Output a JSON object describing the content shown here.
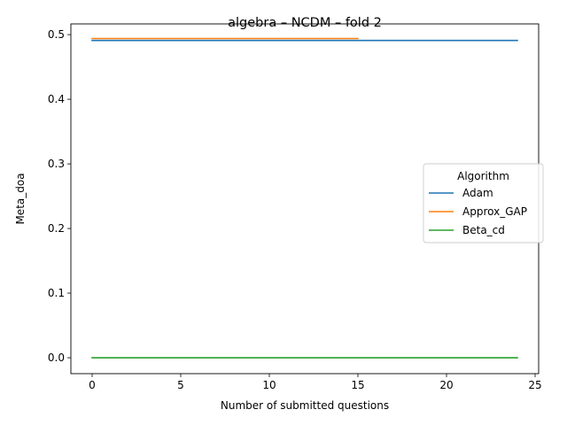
{
  "chart_data": {
    "type": "line",
    "title": "algebra – NCDM – fold 2",
    "xlabel": "Number of submitted questions",
    "ylabel": "Meta_doa",
    "xlim": [
      -1.2,
      25.2
    ],
    "ylim": [
      -0.0246,
      0.5166
    ],
    "xticks": [
      0,
      5,
      10,
      15,
      20,
      25
    ],
    "xtick_labels": [
      "0",
      "5",
      "10",
      "15",
      "20",
      "25"
    ],
    "yticks": [
      0.0,
      0.1,
      0.2,
      0.3,
      0.4,
      0.5
    ],
    "ytick_labels": [
      "0.0",
      "0.1",
      "0.2",
      "0.3",
      "0.4",
      "0.5"
    ],
    "grid": false,
    "legend": {
      "title": "Algorithm",
      "placement": "center-right"
    },
    "series": [
      {
        "name": "Adam",
        "color": "#1f77b4",
        "x": [
          0,
          1,
          2,
          3,
          4,
          5,
          6,
          7,
          8,
          9,
          10,
          11,
          12,
          13,
          14,
          15,
          16,
          17,
          18,
          19,
          20,
          21,
          22,
          23,
          24
        ],
        "y": [
          0.491,
          0.491,
          0.491,
          0.491,
          0.491,
          0.491,
          0.491,
          0.491,
          0.491,
          0.491,
          0.491,
          0.491,
          0.491,
          0.491,
          0.491,
          0.491,
          0.491,
          0.491,
          0.491,
          0.491,
          0.491,
          0.491,
          0.491,
          0.491,
          0.491
        ]
      },
      {
        "name": "Approx_GAP",
        "color": "#ff7f0e",
        "x": [
          0,
          1,
          2,
          3,
          4,
          5,
          6,
          7,
          8,
          9,
          10,
          11,
          12,
          13,
          14,
          15
        ],
        "y": [
          0.494,
          0.494,
          0.494,
          0.494,
          0.494,
          0.494,
          0.494,
          0.494,
          0.494,
          0.494,
          0.494,
          0.494,
          0.494,
          0.494,
          0.494,
          0.494
        ]
      },
      {
        "name": "Beta_cd",
        "color": "#2ca02c",
        "x": [
          0,
          1,
          2,
          3,
          4,
          5,
          6,
          7,
          8,
          9,
          10,
          11,
          12,
          13,
          14,
          15,
          16,
          17,
          18,
          19,
          20,
          21,
          22,
          23,
          24
        ],
        "y": [
          0.0,
          0.0,
          0.0,
          0.0,
          0.0,
          0.0,
          0.0,
          0.0,
          0.0,
          0.0,
          0.0,
          0.0,
          0.0,
          0.0,
          0.0,
          0.0,
          0.0,
          0.0,
          0.0,
          0.0,
          0.0,
          0.0,
          0.0,
          0.0,
          0.0
        ]
      }
    ]
  }
}
